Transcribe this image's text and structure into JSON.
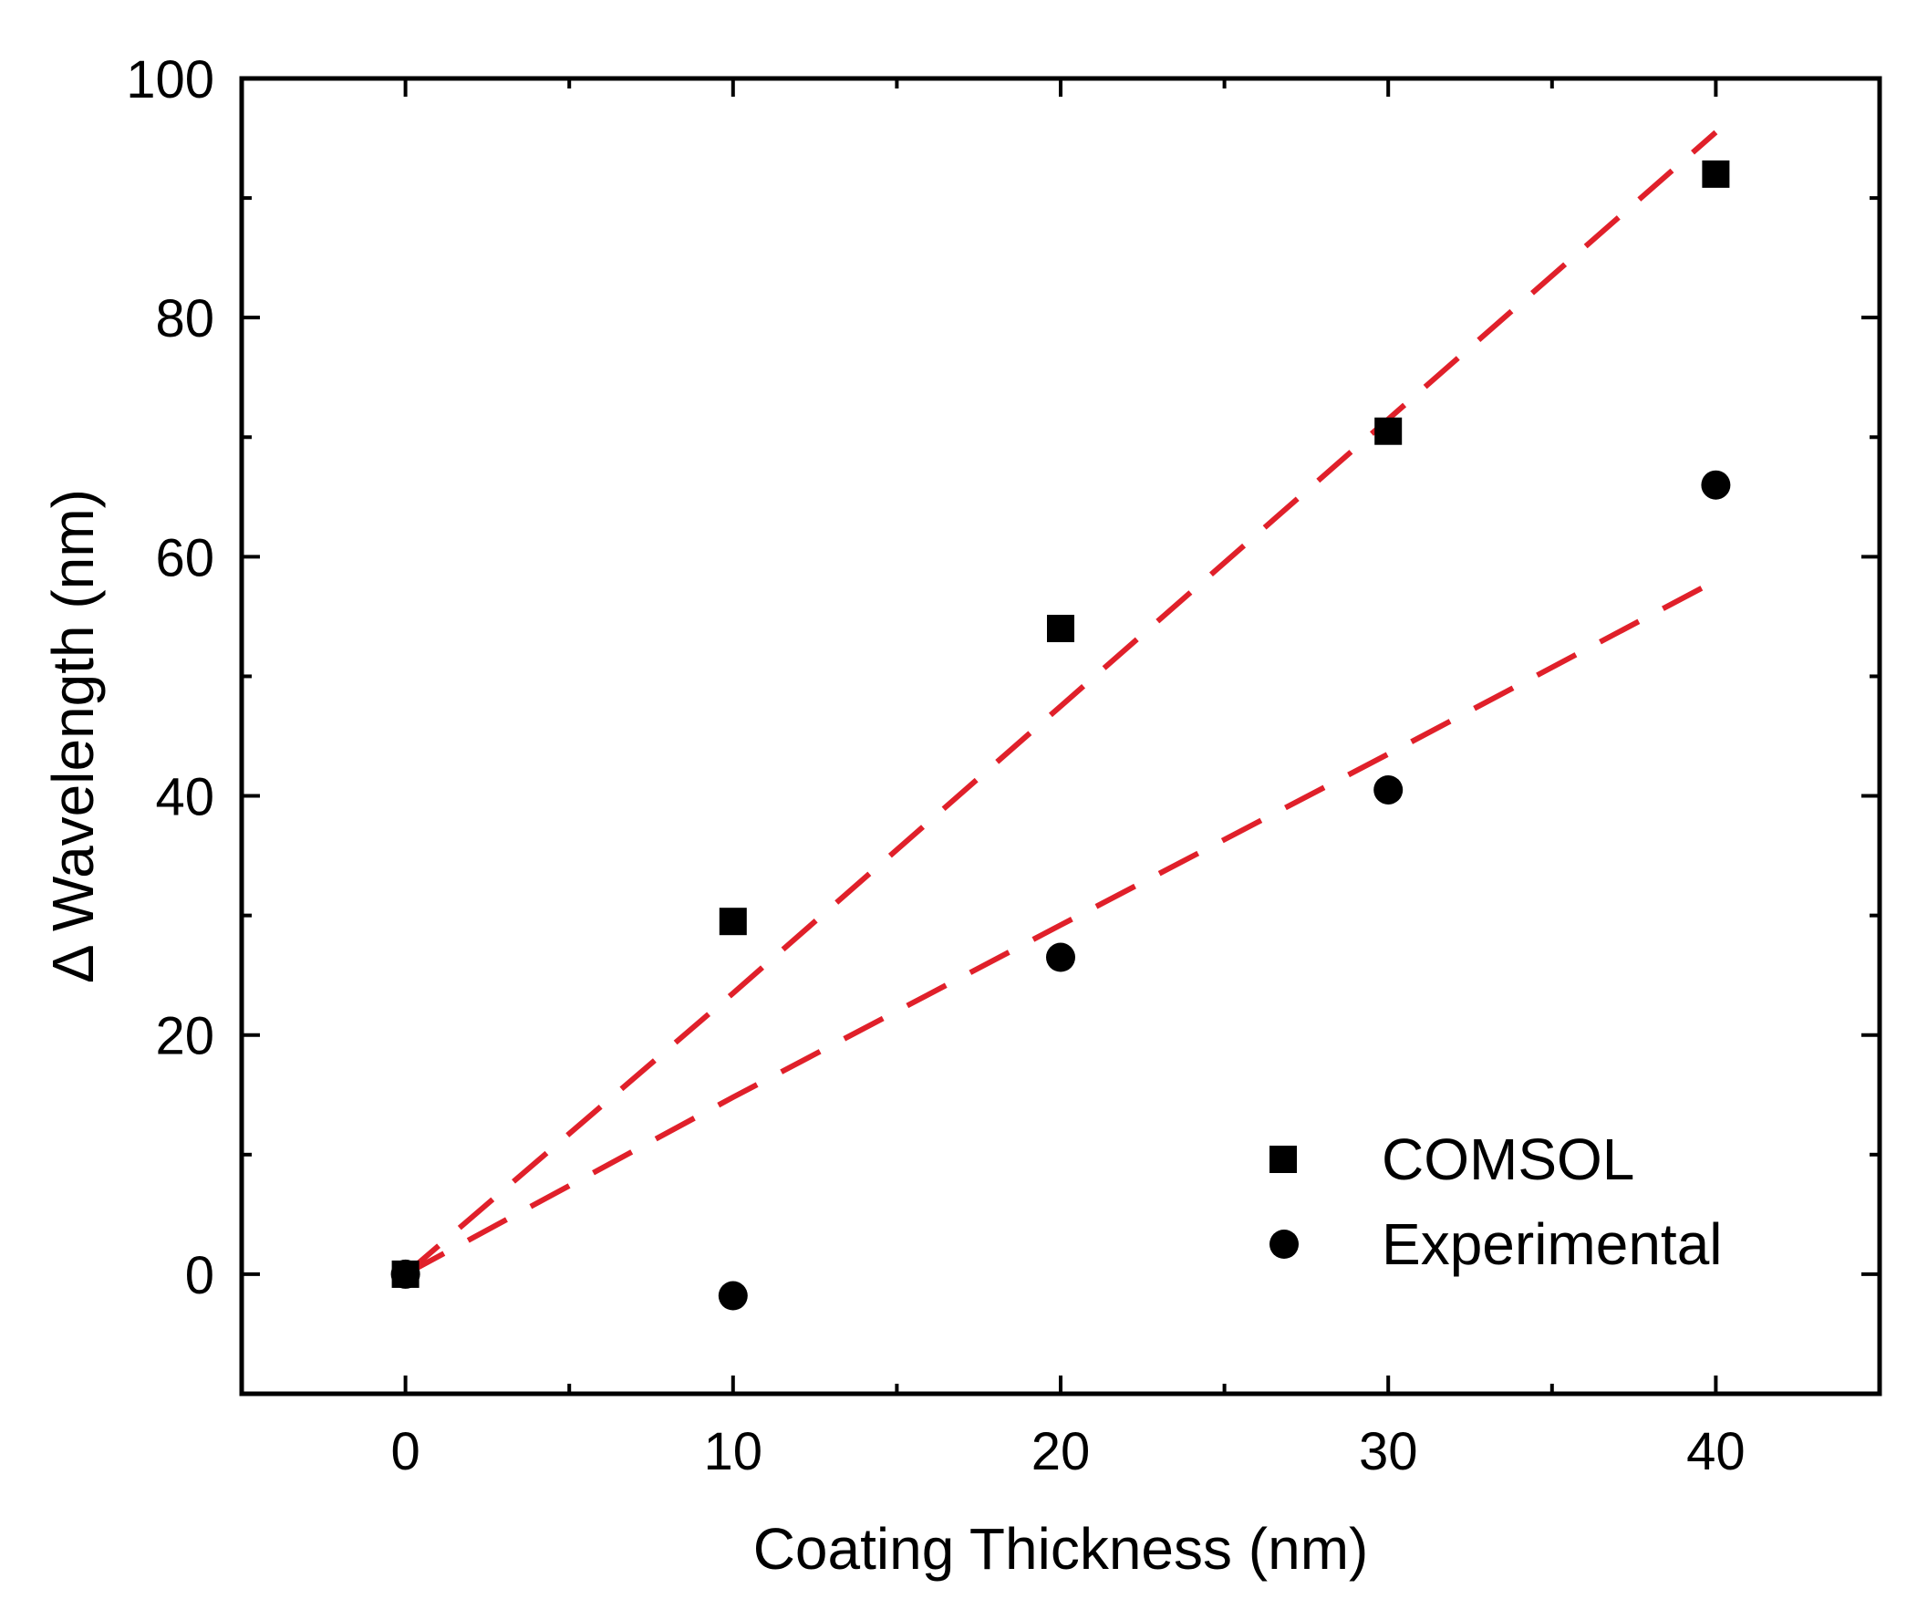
{
  "chart_data": {
    "type": "scatter",
    "title": "",
    "xlabel": "Coating Thickness (nm)",
    "ylabel": "Δ Wavelength (nm)",
    "xlim": [
      -5,
      45
    ],
    "ylim": [
      -10,
      100
    ],
    "x_major_ticks": [
      0,
      10,
      20,
      30,
      40
    ],
    "x_minor_ticks": [
      -5,
      5,
      15,
      25,
      35,
      45
    ],
    "y_major_ticks": [
      0,
      20,
      40,
      60,
      80,
      100
    ],
    "y_minor_ticks": [
      -10,
      10,
      30,
      50,
      70,
      90
    ],
    "x_tick_labels": [
      "0",
      "10",
      "20",
      "30",
      "40"
    ],
    "y_tick_labels": [
      "0",
      "20",
      "40",
      "60",
      "80",
      "100"
    ],
    "grid": false,
    "legend_position": "bottom-right",
    "series": [
      {
        "name": "COMSOL",
        "marker": "square",
        "color": "#000000",
        "x": [
          0,
          10,
          20,
          30,
          40
        ],
        "y": [
          0,
          29.5,
          54,
          70.5,
          92
        ]
      },
      {
        "name": "Experimental",
        "marker": "circle",
        "color": "#000000",
        "x": [
          0,
          10,
          20,
          30,
          40
        ],
        "y": [
          0,
          -1.8,
          26.5,
          40.5,
          66
        ]
      }
    ],
    "fit_lines": [
      {
        "fits": "COMSOL",
        "style": "dashed",
        "color": "#e0202a",
        "x": [
          0,
          10,
          20,
          30,
          40
        ],
        "y": [
          0,
          23.5,
          47.5,
          71.5,
          95.5
        ]
      },
      {
        "fits": "Experimental",
        "style": "dashed",
        "color": "#e0202a",
        "x": [
          0,
          10,
          20,
          30,
          40
        ],
        "y": [
          0,
          14.8,
          29.2,
          43.5,
          58
        ]
      }
    ]
  }
}
